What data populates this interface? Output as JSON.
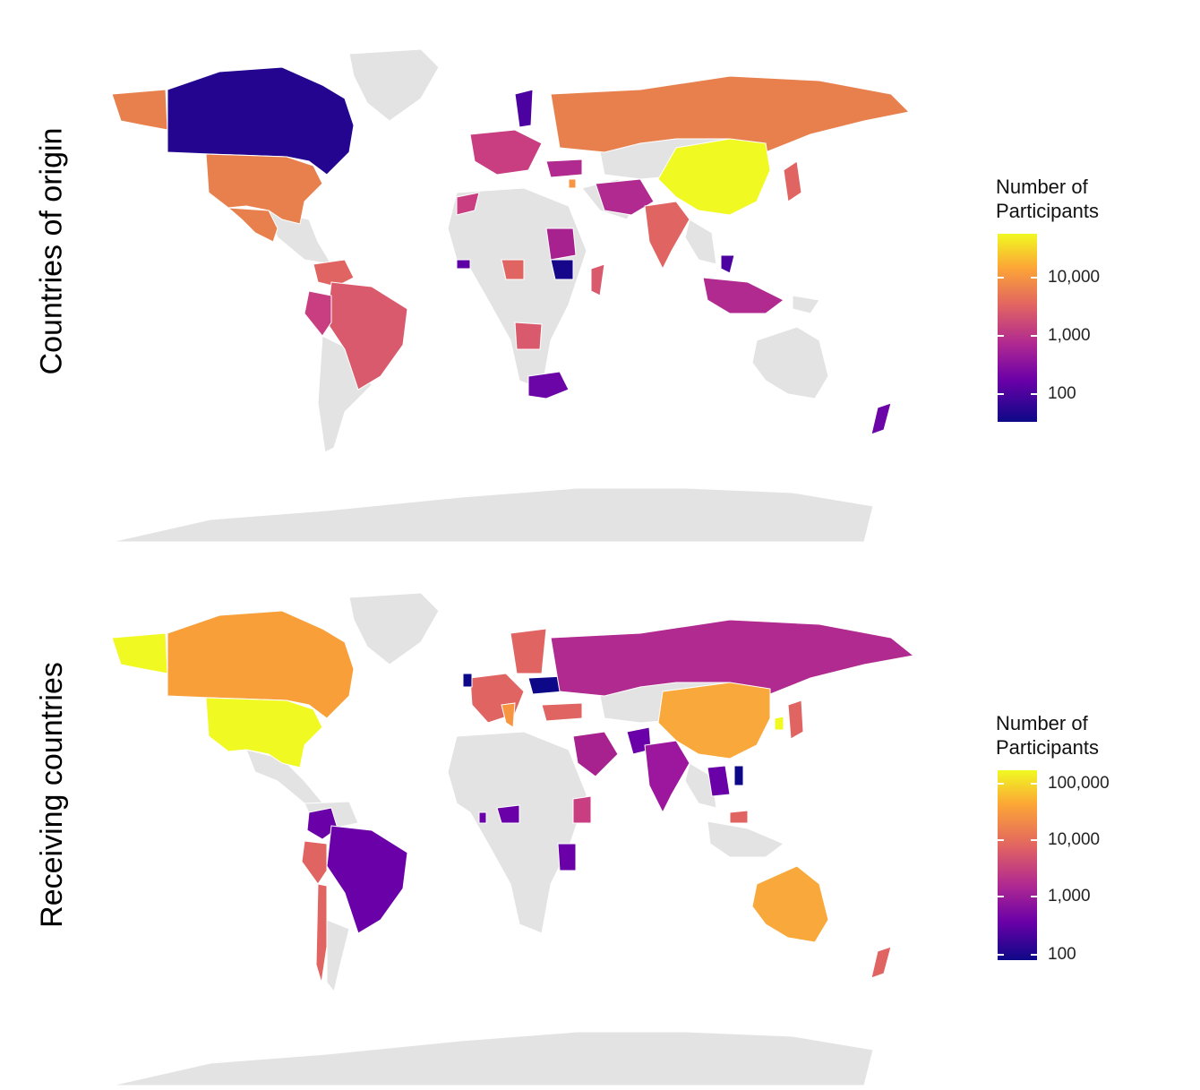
{
  "panels": [
    {
      "id": "origin",
      "row_label": "Countries of origin",
      "legend": {
        "title_line1": "Number of",
        "title_line2": "Participants",
        "scale": "log",
        "range": [
          30,
          60000
        ],
        "ticks": [
          {
            "label": "10,000",
            "value": 10000
          },
          {
            "label": "1,000",
            "value": 1000
          },
          {
            "label": "100",
            "value": 100
          }
        ]
      }
    },
    {
      "id": "receiving",
      "row_label": "Receiving countries",
      "legend": {
        "title_line1": "Number of",
        "title_line2": "Participants",
        "scale": "log",
        "range": [
          70,
          200000
        ],
        "ticks": [
          {
            "label": "100,000",
            "value": 100000
          },
          {
            "label": "10,000",
            "value": 10000
          },
          {
            "label": "1,000",
            "value": 1000
          },
          {
            "label": "100",
            "value": 100
          }
        ]
      }
    }
  ],
  "colors": {
    "no_data": "#e3e3e3",
    "palette": [
      "#0d0887",
      "#6a00a8",
      "#b12a90",
      "#e16462",
      "#fca636",
      "#f0f921"
    ]
  }
}
